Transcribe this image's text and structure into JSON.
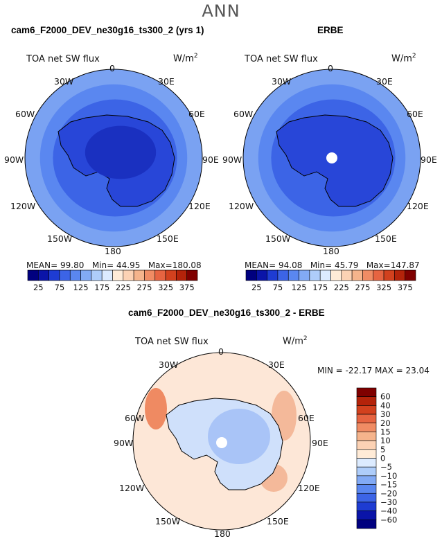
{
  "title": "ANN",
  "panels": [
    {
      "id": "model",
      "title": "cam6_F2000_DEV_ne30g16_ts300_2 (yrs 1)",
      "variable": "TOA net SW flux",
      "units_text": "W/m",
      "units_sup": "2",
      "stats": {
        "mean_label": "MEAN=",
        "mean": "99.80",
        "min_label": "Min=",
        "min": "44.95",
        "max_label": "Max=",
        "max": "180.08"
      }
    },
    {
      "id": "obs",
      "title": "ERBE",
      "variable": "TOA net SW flux",
      "units_text": "W/m",
      "units_sup": "2",
      "stats": {
        "mean_label": "MEAN=",
        "mean": "94.08",
        "min_label": "Min=",
        "min": "45.79",
        "max_label": "Max=",
        "max": "147.87"
      }
    },
    {
      "id": "diff",
      "title": "cam6_F2000_DEV_ne30g16_ts300_2 - ERBE",
      "variable": "TOA net SW flux",
      "units_text": "W/m",
      "units_sup": "2",
      "stats_line": "MIN = -22.17   MAX =  23.04"
    }
  ],
  "longitude_labels": {
    "top": "0",
    "bottom": "180",
    "upper_left": "30W",
    "upper_right": "30E",
    "left_high": "60W",
    "right_high": "60E",
    "left": "90W",
    "right": "90E",
    "left_low": "120W",
    "right_low": "120E",
    "lower_left": "150W",
    "lower_right": "150E"
  },
  "colorbar_abs": {
    "labels": [
      "25",
      "75",
      "125",
      "175",
      "225",
      "275",
      "325",
      "375"
    ],
    "colors": [
      "#00007f",
      "#0a14a8",
      "#1e3cd2",
      "#3c64e6",
      "#5a87f0",
      "#82aaf5",
      "#aecdfa",
      "#dcebff",
      "#ffebd7",
      "#fcd2b4",
      "#f5b48c",
      "#f08c64",
      "#e66441",
      "#d2411e",
      "#b4230a",
      "#7f0000"
    ]
  },
  "colorbar_diff": {
    "labels": [
      "60",
      "40",
      "30",
      "20",
      "15",
      "10",
      "5",
      "0",
      "−5",
      "−10",
      "−15",
      "−20",
      "−30",
      "−40",
      "−60"
    ],
    "colors": [
      "#7f0000",
      "#b4230a",
      "#d2411e",
      "#e66441",
      "#f08c64",
      "#f5b48c",
      "#fcd2b4",
      "#ffebd7",
      "#dcebff",
      "#aecdfa",
      "#82aaf5",
      "#5a87f0",
      "#3c64e6",
      "#1e3cd2",
      "#0a14a8",
      "#00007f"
    ]
  },
  "map_colors": {
    "ocean_outer": "#7aa2f2",
    "ocean_mid": "#5a87f0",
    "ocean_inner": "#3c64e6",
    "land": "#2846d8",
    "plateau": "#1a30c0",
    "diff_background": "#fde7d7",
    "diff_light_blue": "#cfe0fb",
    "diff_mid_blue": "#a9c4f7",
    "diff_salmon": "#f4b99a",
    "diff_orange": "#ef8a62"
  }
}
